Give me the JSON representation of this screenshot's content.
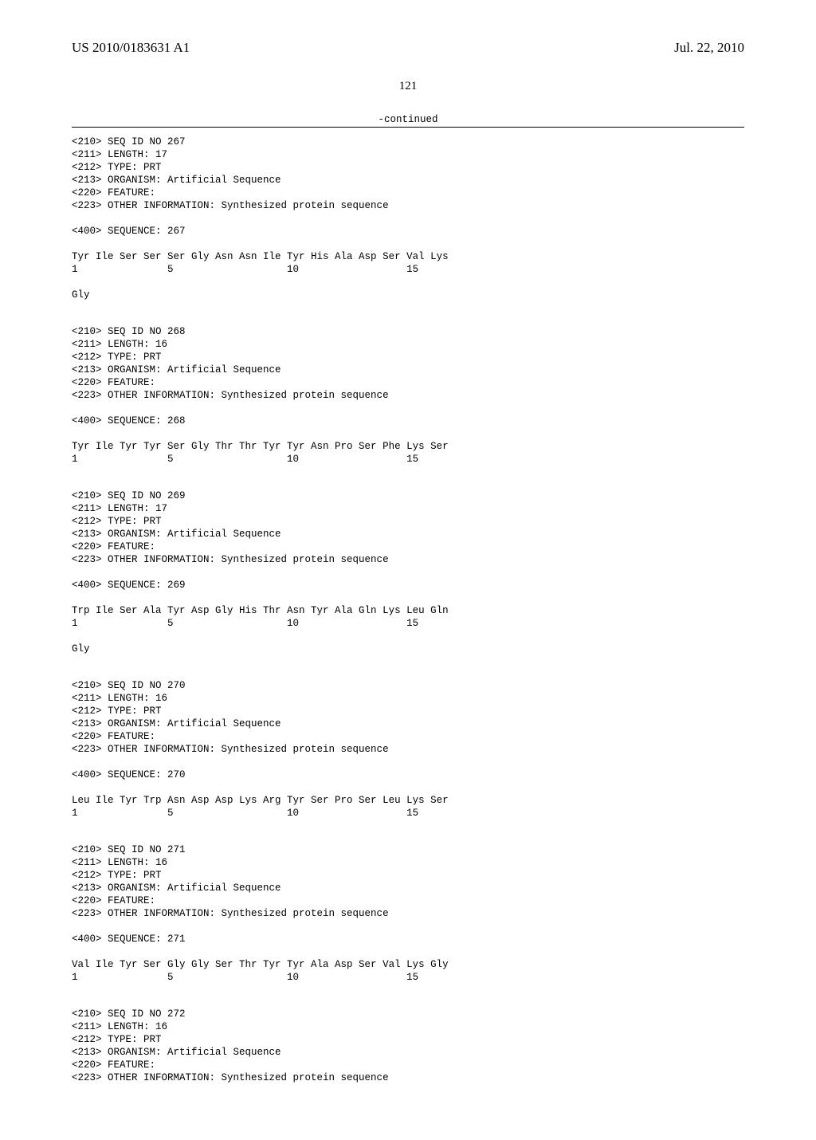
{
  "header": {
    "publication_number": "US 2010/0183631 A1",
    "publication_date": "Jul. 22, 2010"
  },
  "page_number": "121",
  "continued_label": "-continued",
  "sequences": [
    {
      "header_lines": [
        "<210> SEQ ID NO 267",
        "<211> LENGTH: 17",
        "<212> TYPE: PRT",
        "<213> ORGANISM: Artificial Sequence",
        "<220> FEATURE:",
        "<223> OTHER INFORMATION: Synthesized protein sequence"
      ],
      "sequence_label": "<400> SEQUENCE: 267",
      "residue_line": "Tyr Ile Ser Ser Ser Gly Asn Asn Ile Tyr His Ala Asp Ser Val Lys",
      "number_line": "1               5                   10                  15",
      "extra_line": "Gly"
    },
    {
      "header_lines": [
        "<210> SEQ ID NO 268",
        "<211> LENGTH: 16",
        "<212> TYPE: PRT",
        "<213> ORGANISM: Artificial Sequence",
        "<220> FEATURE:",
        "<223> OTHER INFORMATION: Synthesized protein sequence"
      ],
      "sequence_label": "<400> SEQUENCE: 268",
      "residue_line": "Tyr Ile Tyr Tyr Ser Gly Thr Thr Tyr Tyr Asn Pro Ser Phe Lys Ser",
      "number_line": "1               5                   10                  15",
      "extra_line": ""
    },
    {
      "header_lines": [
        "<210> SEQ ID NO 269",
        "<211> LENGTH: 17",
        "<212> TYPE: PRT",
        "<213> ORGANISM: Artificial Sequence",
        "<220> FEATURE:",
        "<223> OTHER INFORMATION: Synthesized protein sequence"
      ],
      "sequence_label": "<400> SEQUENCE: 269",
      "residue_line": "Trp Ile Ser Ala Tyr Asp Gly His Thr Asn Tyr Ala Gln Lys Leu Gln",
      "number_line": "1               5                   10                  15",
      "extra_line": "Gly"
    },
    {
      "header_lines": [
        "<210> SEQ ID NO 270",
        "<211> LENGTH: 16",
        "<212> TYPE: PRT",
        "<213> ORGANISM: Artificial Sequence",
        "<220> FEATURE:",
        "<223> OTHER INFORMATION: Synthesized protein sequence"
      ],
      "sequence_label": "<400> SEQUENCE: 270",
      "residue_line": "Leu Ile Tyr Trp Asn Asp Asp Lys Arg Tyr Ser Pro Ser Leu Lys Ser",
      "number_line": "1               5                   10                  15",
      "extra_line": ""
    },
    {
      "header_lines": [
        "<210> SEQ ID NO 271",
        "<211> LENGTH: 16",
        "<212> TYPE: PRT",
        "<213> ORGANISM: Artificial Sequence",
        "<220> FEATURE:",
        "<223> OTHER INFORMATION: Synthesized protein sequence"
      ],
      "sequence_label": "<400> SEQUENCE: 271",
      "residue_line": "Val Ile Tyr Ser Gly Gly Ser Thr Tyr Tyr Ala Asp Ser Val Lys Gly",
      "number_line": "1               5                   10                  15",
      "extra_line": ""
    },
    {
      "header_lines": [
        "<210> SEQ ID NO 272",
        "<211> LENGTH: 16",
        "<212> TYPE: PRT",
        "<213> ORGANISM: Artificial Sequence",
        "<220> FEATURE:",
        "<223> OTHER INFORMATION: Synthesized protein sequence"
      ],
      "sequence_label": "",
      "residue_line": "",
      "number_line": "",
      "extra_line": ""
    }
  ]
}
